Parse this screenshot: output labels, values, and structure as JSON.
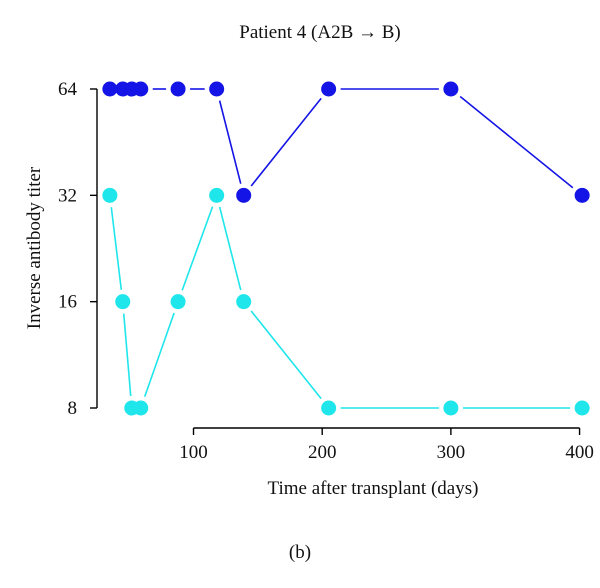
{
  "chart_data": {
    "type": "line",
    "title": "Patient 4 (A2B → B)",
    "xlabel": "Time after transplant (days)",
    "ylabel": "Inverse antibody titer",
    "y_scale": "log2",
    "xlim": [
      25,
      405
    ],
    "ylim": [
      8,
      64
    ],
    "x_ticks": [
      100,
      200,
      300,
      400
    ],
    "x_tick_labels": [
      "100",
      "200",
      "300",
      "400"
    ],
    "y_ticks": [
      8,
      16,
      32,
      64
    ],
    "y_tick_labels": [
      "8",
      "16",
      "32",
      "64"
    ],
    "grid": false,
    "legend": "none",
    "series": [
      {
        "color": "#1414e6",
        "x": [
          35,
          45,
          52,
          59,
          88,
          118,
          139,
          205,
          300,
          402
        ],
        "y": [
          64,
          64,
          64,
          64,
          64,
          64,
          32,
          64,
          64,
          32
        ]
      },
      {
        "color": "#1ee6eb",
        "x": [
          35,
          45,
          52,
          59,
          88,
          118,
          139,
          205,
          300,
          402
        ],
        "y": [
          32,
          16,
          8,
          8,
          16,
          32,
          16,
          8,
          8,
          8
        ]
      }
    ]
  },
  "caption": "(b)"
}
